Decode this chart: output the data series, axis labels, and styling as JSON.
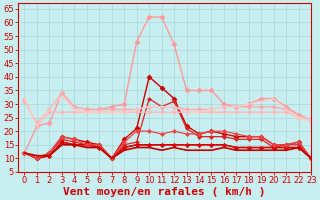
{
  "background_color": "#c8eef0",
  "grid_color": "#aadddd",
  "xlabel": "Vent moyen/en rafales ( km/h )",
  "xlim": [
    -0.5,
    23
  ],
  "ylim": [
    5,
    67
  ],
  "yticks": [
    5,
    10,
    15,
    20,
    25,
    30,
    35,
    40,
    45,
    50,
    55,
    60,
    65
  ],
  "xticks": [
    0,
    1,
    2,
    3,
    4,
    5,
    6,
    7,
    8,
    9,
    10,
    11,
    12,
    13,
    14,
    15,
    16,
    17,
    18,
    19,
    20,
    21,
    22,
    23
  ],
  "series": [
    {
      "x": [
        0,
        1,
        2,
        3,
        4,
        5,
        6,
        7,
        8,
        9,
        10,
        11,
        12,
        13,
        14,
        15,
        16,
        17,
        18,
        19,
        20,
        21,
        22,
        23
      ],
      "y": [
        12,
        10,
        12,
        18,
        17,
        16,
        15,
        10,
        17,
        21,
        40,
        36,
        32,
        22,
        19,
        20,
        19,
        18,
        18,
        18,
        15,
        15,
        16,
        10
      ],
      "color": "#cc0000",
      "marker": "D",
      "markersize": 2.5,
      "linewidth": 1.0
    },
    {
      "x": [
        0,
        1,
        2,
        3,
        4,
        5,
        6,
        7,
        8,
        9,
        10,
        11,
        12,
        13,
        14,
        15,
        16,
        17,
        18,
        19,
        20,
        21,
        22,
        23
      ],
      "y": [
        12,
        10,
        12,
        17,
        16,
        15,
        15,
        10,
        15,
        16,
        32,
        29,
        31,
        21,
        18,
        18,
        18,
        17,
        17,
        17,
        14,
        15,
        15,
        10
      ],
      "color": "#dd2222",
      "marker": "D",
      "markersize": 2,
      "linewidth": 0.9
    },
    {
      "x": [
        0,
        1,
        2,
        3,
        4,
        5,
        6,
        7,
        8,
        9,
        10,
        11,
        12,
        13,
        14,
        15,
        16,
        17,
        18,
        19,
        20,
        21,
        22,
        23
      ],
      "y": [
        12,
        10,
        11,
        16,
        15,
        15,
        14,
        10,
        14,
        15,
        15,
        15,
        15,
        15,
        15,
        15,
        15,
        14,
        14,
        14,
        14,
        14,
        14,
        10
      ],
      "color": "#cc0000",
      "marker": "D",
      "markersize": 2,
      "linewidth": 1.0
    },
    {
      "x": [
        0,
        1,
        2,
        3,
        4,
        5,
        6,
        7,
        8,
        9,
        10,
        11,
        12,
        13,
        14,
        15,
        16,
        17,
        18,
        19,
        20,
        21,
        22,
        23
      ],
      "y": [
        12,
        10,
        11,
        16,
        15,
        15,
        14,
        10,
        14,
        15,
        15,
        15,
        15,
        15,
        15,
        15,
        15,
        14,
        14,
        14,
        14,
        14,
        14,
        10
      ],
      "color": "#dd0000",
      "marker": "D",
      "markersize": 2,
      "linewidth": 1.0
    },
    {
      "x": [
        0,
        1,
        2,
        3,
        4,
        5,
        6,
        7,
        8,
        9,
        10,
        11,
        12,
        13,
        14,
        15,
        16,
        17,
        18,
        19,
        20,
        21,
        22,
        23
      ],
      "y": [
        12,
        22,
        23,
        34,
        29,
        28,
        28,
        29,
        30,
        53,
        62,
        62,
        52,
        35,
        35,
        35,
        30,
        29,
        30,
        32,
        32,
        29,
        26,
        24
      ],
      "color": "#ff9999",
      "marker": "D",
      "markersize": 2.5,
      "linewidth": 1.0
    },
    {
      "x": [
        0,
        1,
        2,
        3,
        4,
        5,
        6,
        7,
        8,
        9,
        10,
        11,
        12,
        13,
        14,
        15,
        16,
        17,
        18,
        19,
        20,
        21,
        22,
        23
      ],
      "y": [
        31,
        23,
        28,
        34,
        29,
        28,
        28,
        28,
        28,
        28,
        29,
        29,
        29,
        28,
        28,
        28,
        29,
        29,
        29,
        29,
        29,
        28,
        26,
        24
      ],
      "color": "#ffaaaa",
      "marker": "D",
      "markersize": 2,
      "linewidth": 1.0
    },
    {
      "x": [
        0,
        1,
        2,
        3,
        4,
        5,
        6,
        7,
        8,
        9,
        10,
        11,
        12,
        13,
        14,
        15,
        16,
        17,
        18,
        19,
        20,
        21,
        22,
        23
      ],
      "y": [
        32,
        22,
        27,
        27,
        27,
        27,
        27,
        27,
        27,
        27,
        27,
        27,
        27,
        27,
        27,
        27,
        27,
        27,
        27,
        27,
        27,
        27,
        25,
        24
      ],
      "color": "#ffbbbb",
      "marker": "D",
      "markersize": 2,
      "linewidth": 1.0
    },
    {
      "x": [
        0,
        1,
        2,
        3,
        4,
        5,
        6,
        7,
        8,
        9,
        10,
        11,
        12,
        13,
        14,
        15,
        16,
        17,
        18,
        19,
        20,
        21,
        22,
        23
      ],
      "y": [
        32,
        22,
        28,
        33,
        28,
        27,
        27,
        27,
        27,
        28,
        29,
        29,
        29,
        27,
        27,
        28,
        29,
        29,
        30,
        31,
        32,
        28,
        25,
        24
      ],
      "color": "#ffcccc",
      "marker": null,
      "markersize": 0,
      "linewidth": 1.0
    },
    {
      "x": [
        0,
        1,
        2,
        3,
        4,
        5,
        6,
        7,
        8,
        9,
        10,
        11,
        12,
        13,
        14,
        15,
        16,
        17,
        18,
        19,
        20,
        21,
        22,
        23
      ],
      "y": [
        12,
        10,
        12,
        18,
        17,
        15,
        15,
        10,
        16,
        20,
        20,
        19,
        20,
        19,
        19,
        20,
        20,
        19,
        18,
        18,
        15,
        15,
        16,
        10
      ],
      "color": "#ee4444",
      "marker": "D",
      "markersize": 2,
      "linewidth": 0.9
    },
    {
      "x": [
        0,
        1,
        2,
        3,
        4,
        5,
        6,
        7,
        8,
        9,
        10,
        11,
        12,
        13,
        14,
        15,
        16,
        17,
        18,
        19,
        20,
        21,
        22,
        23
      ],
      "y": [
        12,
        11,
        11,
        15,
        15,
        14,
        14,
        10,
        13,
        14,
        14,
        13,
        14,
        13,
        13,
        13,
        14,
        13,
        13,
        13,
        13,
        13,
        14,
        10
      ],
      "color": "#bb0000",
      "marker": null,
      "markersize": 0,
      "linewidth": 1.2
    }
  ],
  "axis_color": "#cc0000",
  "tick_color": "#cc0000",
  "tick_fontsize": 6,
  "xlabel_fontsize": 8,
  "xlabel_color": "#cc0000"
}
